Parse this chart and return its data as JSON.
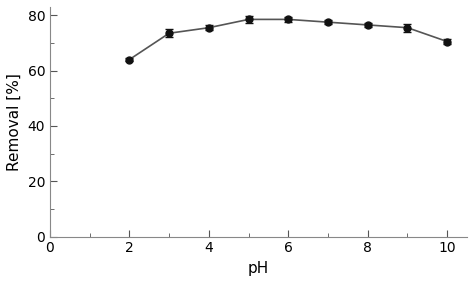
{
  "x": [
    2,
    3,
    4,
    5,
    6,
    7,
    8,
    9,
    10
  ],
  "y": [
    64,
    73.5,
    75.5,
    78.5,
    78.5,
    77.5,
    76.5,
    75.5,
    70.5
  ],
  "yerr": [
    0.5,
    1.5,
    0.8,
    1.2,
    1.0,
    0.8,
    0.8,
    1.5,
    0.8
  ],
  "line_color": "#555555",
  "marker_color": "#111111",
  "marker_face": "#111111",
  "xlabel": "pH",
  "ylabel": "Removal [%]",
  "xlim": [
    0,
    10.5
  ],
  "ylim": [
    0,
    83
  ],
  "xticks": [
    0,
    2,
    4,
    6,
    8,
    10
  ],
  "yticks": [
    0,
    20,
    40,
    60,
    80
  ],
  "xlabel_fontsize": 11,
  "ylabel_fontsize": 11,
  "tick_fontsize": 10,
  "marker_size": 5,
  "line_width": 1.2,
  "capsize": 3,
  "elinewidth": 1.0,
  "spine_color": "#888888",
  "tick_color": "#555555"
}
